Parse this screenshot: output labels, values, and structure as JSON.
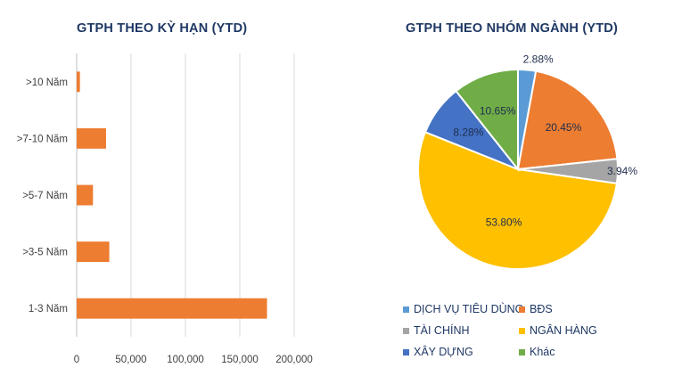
{
  "chart_data": [
    {
      "type": "bar",
      "orientation": "horizontal",
      "title": "GTPH THEO KỲ HẠN (YTD)",
      "categories": [
        ">10 Năm",
        ">7-10 Năm",
        ">5-7 Năm",
        ">3-5 Năm",
        "1-3 Năm"
      ],
      "values": [
        3000,
        27000,
        15000,
        30000,
        175000
      ],
      "xlim": [
        0,
        200000
      ],
      "x_ticks": [
        "0",
        "50,000",
        "100,000",
        "150,000",
        "200,000"
      ],
      "x_tick_values": [
        0,
        50000,
        100000,
        150000,
        200000
      ],
      "grid": "vertical",
      "color": "#ed7d31"
    },
    {
      "type": "pie",
      "title": "GTPH THEO NHÓM NGÀNH (YTD)",
      "slices": [
        {
          "name": "DỊCH VỤ TIÊU DÙNG",
          "value": 2.88,
          "label": "2.88%",
          "color": "#5b9bd5"
        },
        {
          "name": "BĐS",
          "value": 20.45,
          "label": "20.45%",
          "color": "#ed7d31"
        },
        {
          "name": "TÀI CHÍNH",
          "value": 3.94,
          "label": "3.94%",
          "color": "#a5a5a5"
        },
        {
          "name": "NGÂN HÀNG",
          "value": 53.8,
          "label": "53.80%",
          "color": "#ffc000"
        },
        {
          "name": "XÂY DỰNG",
          "value": 8.28,
          "label": "8.28%",
          "color": "#4472c4"
        },
        {
          "name": "Khác",
          "value": 10.65,
          "label": "10.65%",
          "color": "#70ad47"
        }
      ],
      "legend_position": "bottom"
    }
  ]
}
